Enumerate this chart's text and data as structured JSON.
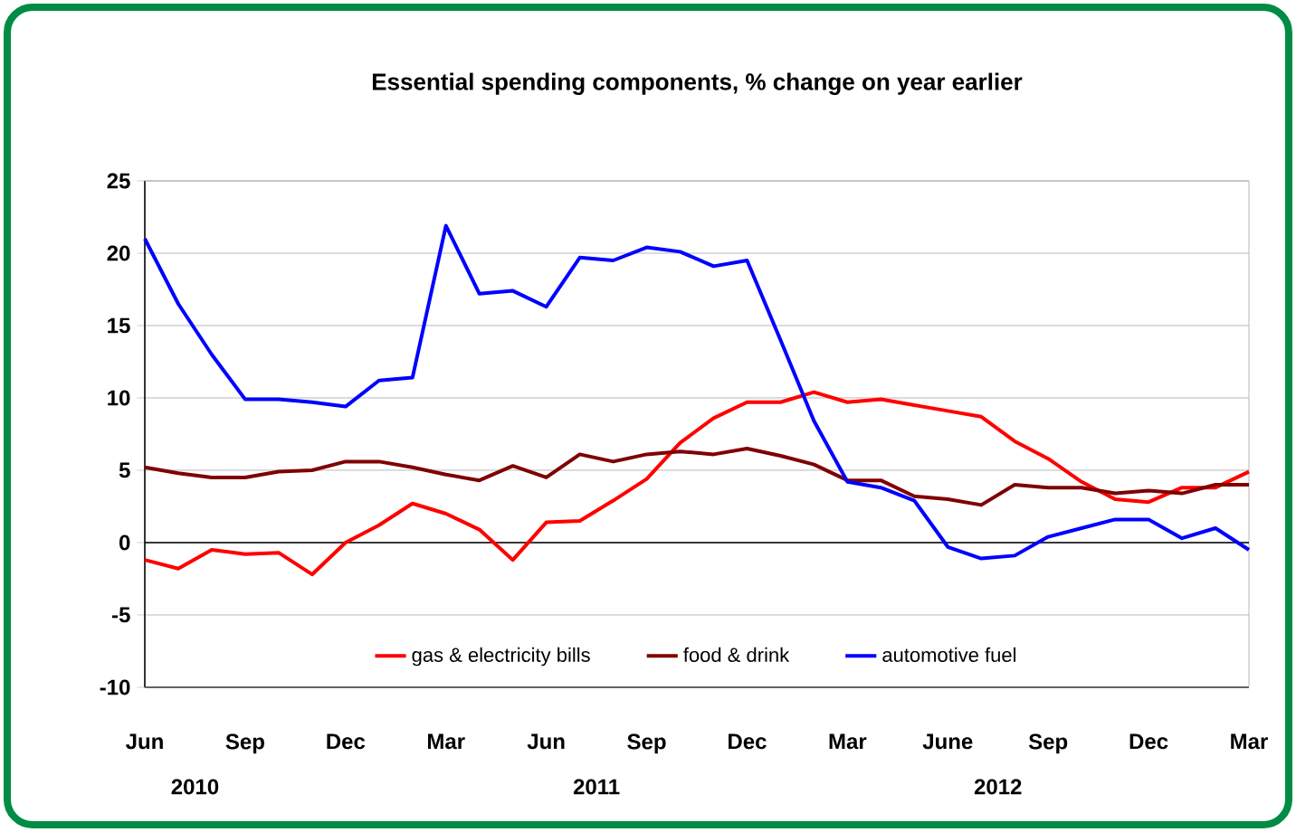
{
  "chart_data": {
    "type": "line",
    "title": "Essential spending components, % change on year earlier",
    "categories": [
      "Jun",
      null,
      null,
      "Sep",
      null,
      null,
      "Dec",
      null,
      null,
      "Mar",
      null,
      null,
      "Jun",
      null,
      null,
      "Sep",
      null,
      null,
      "Dec",
      null,
      null,
      "Mar",
      null,
      null,
      "June",
      null,
      null,
      "Sep",
      null,
      null,
      "Dec",
      null,
      null,
      "Mar"
    ],
    "series": [
      {
        "name": "gas & electricity bills",
        "color": "#ff0000",
        "values": [
          -1.2,
          -1.8,
          -0.5,
          -0.8,
          -0.7,
          -2.2,
          0,
          1.2,
          2.7,
          2.0,
          0.9,
          -1.2,
          1.4,
          1.5,
          2.9,
          4.4,
          6.9,
          8.6,
          9.7,
          9.7,
          10.4,
          9.7,
          9.9,
          9.5,
          9.1,
          8.7,
          7.0,
          5.8,
          4.2,
          3.0,
          2.8,
          3.8,
          3.8,
          4.9
        ]
      },
      {
        "name": "food & drink",
        "color": "#800000",
        "values": [
          5.2,
          4.8,
          4.5,
          4.5,
          4.9,
          5.0,
          5.6,
          5.6,
          5.2,
          4.7,
          4.3,
          5.3,
          4.5,
          6.1,
          5.6,
          6.1,
          6.3,
          6.1,
          6.5,
          6.0,
          5.4,
          4.3,
          4.3,
          3.2,
          3.0,
          2.6,
          4.0,
          3.8,
          3.8,
          3.4,
          3.6,
          3.4,
          4.0,
          4.0
        ]
      },
      {
        "name": "automotive fuel",
        "color": "#0000ff",
        "values": [
          21,
          16.5,
          13,
          9.9,
          9.9,
          9.7,
          9.4,
          11.2,
          11.4,
          21.9,
          17.2,
          17.4,
          16.3,
          19.7,
          19.5,
          20.4,
          20.1,
          19.1,
          19.5,
          14,
          8.4,
          4.2,
          3.8,
          2.9,
          -0.3,
          -1.1,
          -0.9,
          0.4,
          1.0,
          1.6,
          1.6,
          0.3,
          1.0,
          -0.5
        ]
      }
    ],
    "annotations": [
      "2010",
      "2011",
      "2012"
    ],
    "ylim": [
      -10,
      25
    ],
    "yticks": [
      -10,
      -5,
      0,
      5,
      10,
      15,
      20,
      25
    ],
    "grid": "y",
    "legend": "bottom",
    "marker": "none",
    "line_style": "solid"
  }
}
